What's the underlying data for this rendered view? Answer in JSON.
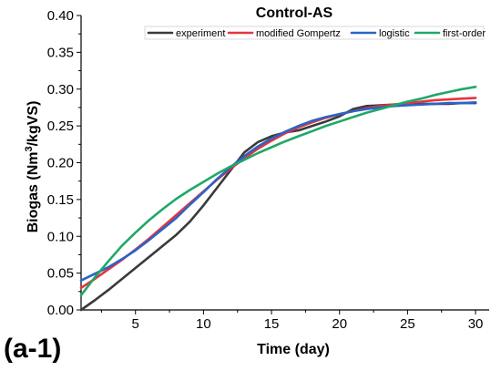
{
  "panel_label": "(a-1)",
  "chart_data": {
    "type": "line",
    "title": "Control-AS",
    "xlabel": "Time (day)",
    "ylabel": "Biogas (Nm³/kgVS)",
    "ylabel_parts": {
      "pre": "Biogas (Nm",
      "sup": "3",
      "post": "/kgVS)"
    },
    "xlim": [
      1,
      31
    ],
    "ylim": [
      0,
      0.4
    ],
    "x_ticks": [
      5,
      10,
      15,
      20,
      25,
      30
    ],
    "y_ticks": [
      "0.00",
      "0.05",
      "0.10",
      "0.15",
      "0.20",
      "0.25",
      "0.30",
      "0.35",
      "0.40"
    ],
    "legend_position": "top-right",
    "grid": false,
    "series": [
      {
        "name": "experiment",
        "color": "#3a3a3a",
        "x": [
          1,
          2,
          3,
          4,
          5,
          6,
          7,
          8,
          9,
          10,
          11,
          12,
          13,
          14,
          15,
          16,
          17,
          18,
          19,
          20,
          21,
          22,
          23,
          24,
          25,
          26,
          27,
          28,
          29,
          30
        ],
        "y": [
          0.0,
          0.013,
          0.027,
          0.042,
          0.057,
          0.072,
          0.087,
          0.102,
          0.12,
          0.142,
          0.166,
          0.19,
          0.214,
          0.228,
          0.236,
          0.241,
          0.244,
          0.25,
          0.256,
          0.263,
          0.273,
          0.277,
          0.278,
          0.279,
          0.279,
          0.28,
          0.28,
          0.28,
          0.281,
          0.281
        ]
      },
      {
        "name": "modified Gompertz",
        "color": "#e8333b",
        "x": [
          1,
          2,
          3,
          4,
          5,
          6,
          7,
          8,
          9,
          10,
          11,
          12,
          13,
          14,
          15,
          16,
          17,
          18,
          19,
          20,
          21,
          22,
          23,
          24,
          25,
          26,
          27,
          28,
          29,
          30
        ],
        "y": [
          0.03,
          0.042,
          0.055,
          0.068,
          0.082,
          0.097,
          0.113,
          0.129,
          0.145,
          0.161,
          0.177,
          0.192,
          0.206,
          0.219,
          0.23,
          0.24,
          0.248,
          0.255,
          0.261,
          0.266,
          0.27,
          0.274,
          0.277,
          0.279,
          0.281,
          0.283,
          0.285,
          0.286,
          0.287,
          0.288
        ]
      },
      {
        "name": "logistic",
        "color": "#2b63c7",
        "x": [
          1,
          2,
          3,
          4,
          5,
          6,
          7,
          8,
          9,
          10,
          11,
          12,
          13,
          14,
          15,
          16,
          17,
          18,
          19,
          20,
          21,
          22,
          23,
          24,
          25,
          26,
          27,
          28,
          29,
          30
        ],
        "y": [
          0.04,
          0.049,
          0.058,
          0.069,
          0.081,
          0.095,
          0.11,
          0.125,
          0.143,
          0.16,
          0.178,
          0.194,
          0.209,
          0.222,
          0.233,
          0.242,
          0.25,
          0.257,
          0.262,
          0.266,
          0.27,
          0.273,
          0.275,
          0.277,
          0.278,
          0.279,
          0.28,
          0.281,
          0.281,
          0.282
        ]
      },
      {
        "name": "first-order",
        "color": "#1fa868",
        "x": [
          1,
          2,
          3,
          4,
          5,
          6,
          7,
          8,
          9,
          10,
          11,
          12,
          13,
          14,
          15,
          16,
          17,
          18,
          19,
          20,
          21,
          22,
          23,
          24,
          25,
          26,
          27,
          28,
          29,
          30
        ],
        "y": [
          0.02,
          0.044,
          0.066,
          0.087,
          0.105,
          0.122,
          0.137,
          0.151,
          0.163,
          0.174,
          0.185,
          0.195,
          0.204,
          0.213,
          0.221,
          0.229,
          0.236,
          0.243,
          0.25,
          0.256,
          0.262,
          0.268,
          0.273,
          0.278,
          0.283,
          0.287,
          0.292,
          0.296,
          0.3,
          0.303
        ]
      }
    ]
  }
}
